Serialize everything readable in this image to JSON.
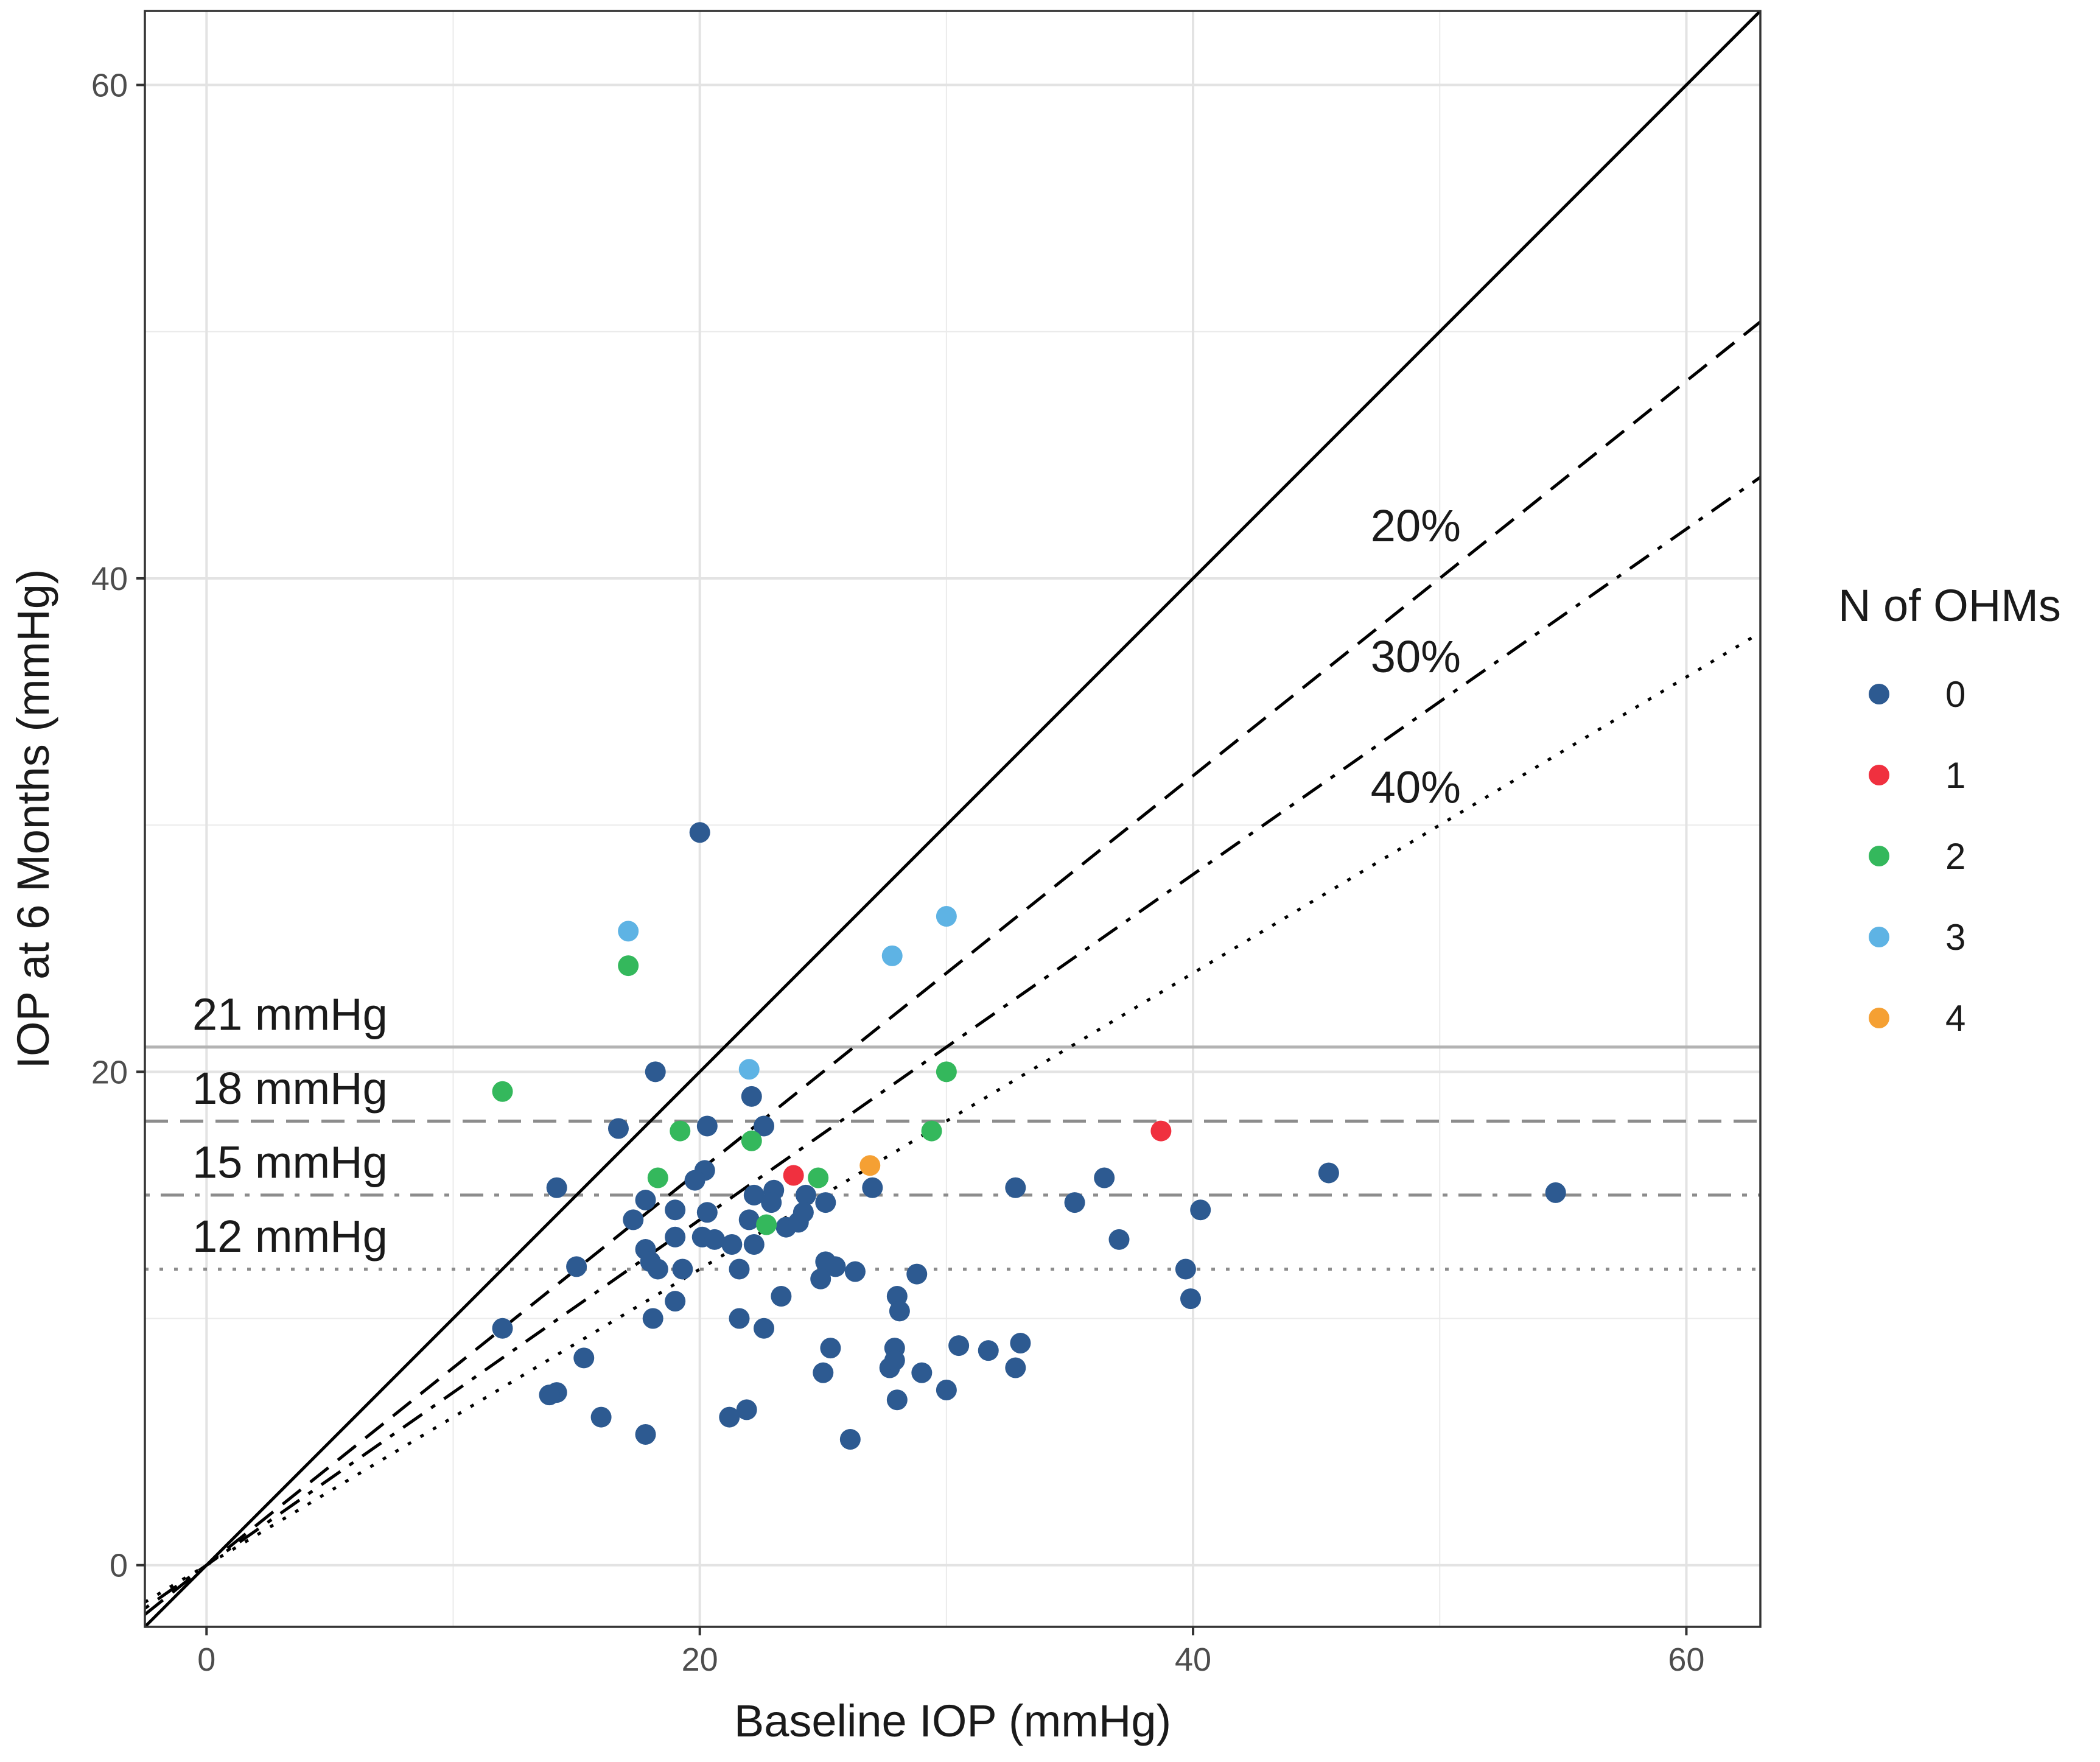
{
  "chart_data": {
    "type": "scatter",
    "xlabel": "Baseline IOP (mmHg)",
    "ylabel": "IOP at 6 Months (mmHg)",
    "xlim": [
      -2.5,
      63
    ],
    "ylim": [
      -2.5,
      63
    ],
    "x_ticks": [
      0,
      20,
      40,
      60
    ],
    "y_ticks": [
      0,
      20,
      40,
      60
    ],
    "grid": true,
    "legend": {
      "title": "N of OHMs",
      "position": "right",
      "entries": [
        {
          "label": "0",
          "color": "#2d5a91"
        },
        {
          "label": "1",
          "color": "#f0303f"
        },
        {
          "label": "2",
          "color": "#34b85c"
        },
        {
          "label": "3",
          "color": "#5eb3e4"
        },
        {
          "label": "4",
          "color": "#f5a033"
        }
      ]
    },
    "reference_lines": {
      "identity": {
        "slope": 1.0,
        "style": "solid"
      },
      "reductions": [
        {
          "label": "20%",
          "slope": 0.8,
          "style": "dashed"
        },
        {
          "label": "30%",
          "slope": 0.7,
          "style": "dotdash"
        },
        {
          "label": "40%",
          "slope": 0.6,
          "style": "dotted"
        }
      ],
      "thresholds": [
        {
          "label": "21 mmHg",
          "y": 21,
          "style": "solid"
        },
        {
          "label": "18 mmHg",
          "y": 18,
          "style": "dashed"
        },
        {
          "label": "15 mmHg",
          "y": 15,
          "style": "dotdash"
        },
        {
          "label": "12 mmHg",
          "y": 12,
          "style": "dotted"
        }
      ]
    },
    "series": [
      {
        "name": "0",
        "color": "#2d5a91",
        "points": [
          [
            20.0,
            29.7
          ],
          [
            18.2,
            20.0
          ],
          [
            22.1,
            19.0
          ],
          [
            16.7,
            17.7
          ],
          [
            20.3,
            17.8
          ],
          [
            22.6,
            17.8
          ],
          [
            14.2,
            15.3
          ],
          [
            17.8,
            14.8
          ],
          [
            20.2,
            16.0
          ],
          [
            19.8,
            15.6
          ],
          [
            22.2,
            15.0
          ],
          [
            23.0,
            15.2
          ],
          [
            24.3,
            15.0
          ],
          [
            25.1,
            14.7
          ],
          [
            27.0,
            15.3
          ],
          [
            17.3,
            14.0
          ],
          [
            19.0,
            14.4
          ],
          [
            20.3,
            14.3
          ],
          [
            22.0,
            14.0
          ],
          [
            23.5,
            13.7
          ],
          [
            24.0,
            13.9
          ],
          [
            24.2,
            14.3
          ],
          [
            22.9,
            14.7
          ],
          [
            19.0,
            13.3
          ],
          [
            20.1,
            13.3
          ],
          [
            20.6,
            13.2
          ],
          [
            21.3,
            13.0
          ],
          [
            22.2,
            13.0
          ],
          [
            17.8,
            12.8
          ],
          [
            18.0,
            12.3
          ],
          [
            18.3,
            12.0
          ],
          [
            19.3,
            12.0
          ],
          [
            21.6,
            12.0
          ],
          [
            25.1,
            12.3
          ],
          [
            25.5,
            12.1
          ],
          [
            26.3,
            11.9
          ],
          [
            28.8,
            11.8
          ],
          [
            15.0,
            12.1
          ],
          [
            24.9,
            11.6
          ],
          [
            23.3,
            10.9
          ],
          [
            19.0,
            10.7
          ],
          [
            18.1,
            10.0
          ],
          [
            21.6,
            10.0
          ],
          [
            22.6,
            9.6
          ],
          [
            12.0,
            9.6
          ],
          [
            28.0,
            10.9
          ],
          [
            28.1,
            10.3
          ],
          [
            15.3,
            8.4
          ],
          [
            25.3,
            8.8
          ],
          [
            25.0,
            7.8
          ],
          [
            27.9,
            8.8
          ],
          [
            27.7,
            8.0
          ],
          [
            27.9,
            8.3
          ],
          [
            29.0,
            7.8
          ],
          [
            30.5,
            8.9
          ],
          [
            31.7,
            8.7
          ],
          [
            33.0,
            9.0
          ],
          [
            32.8,
            8.0
          ],
          [
            30.0,
            7.1
          ],
          [
            28.0,
            6.7
          ],
          [
            14.2,
            7.0
          ],
          [
            13.9,
            6.9
          ],
          [
            16.0,
            6.0
          ],
          [
            21.2,
            6.0
          ],
          [
            21.9,
            6.3
          ],
          [
            17.8,
            5.3
          ],
          [
            26.1,
            5.1
          ],
          [
            32.8,
            15.3
          ],
          [
            35.2,
            14.7
          ],
          [
            36.4,
            15.7
          ],
          [
            37.0,
            13.2
          ],
          [
            40.3,
            14.4
          ],
          [
            39.7,
            12.0
          ],
          [
            39.9,
            10.8
          ],
          [
            45.5,
            15.9
          ],
          [
            54.7,
            15.1
          ]
        ]
      },
      {
        "name": "1",
        "color": "#f0303f",
        "points": [
          [
            23.8,
            15.8
          ],
          [
            38.7,
            17.6
          ]
        ]
      },
      {
        "name": "2",
        "color": "#34b85c",
        "points": [
          [
            12.0,
            19.2
          ],
          [
            17.1,
            24.3
          ],
          [
            19.2,
            17.6
          ],
          [
            22.1,
            17.2
          ],
          [
            18.3,
            15.7
          ],
          [
            24.8,
            15.7
          ],
          [
            22.7,
            13.8
          ],
          [
            29.4,
            17.6
          ],
          [
            30.0,
            20.0
          ]
        ]
      },
      {
        "name": "3",
        "color": "#5eb3e4",
        "points": [
          [
            17.1,
            25.7
          ],
          [
            30.0,
            26.3
          ],
          [
            27.8,
            24.7
          ],
          [
            22.0,
            20.1
          ]
        ]
      },
      {
        "name": "4",
        "color": "#f5a033",
        "points": [
          [
            26.9,
            16.2
          ]
        ]
      }
    ]
  }
}
